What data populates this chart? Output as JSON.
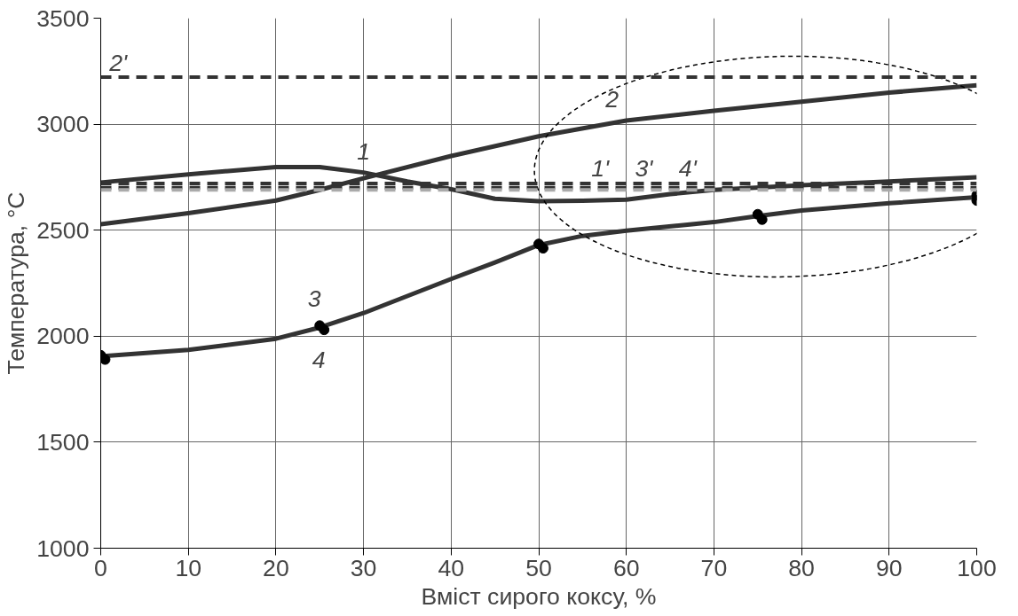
{
  "chart_data": {
    "type": "line",
    "xlabel": "Вміст сирого коксу, %",
    "ylabel": "Температура, °C",
    "xlim": [
      0,
      100
    ],
    "xticks": [
      0,
      10,
      20,
      30,
      40,
      50,
      60,
      70,
      80,
      90,
      100
    ],
    "ylim": [
      1000,
      3500
    ],
    "yticks": [
      1000,
      1500,
      2000,
      2500,
      3000,
      3500
    ],
    "grid": true,
    "line_style": "solid",
    "series": [
      {
        "name": "1",
        "color": "#333333",
        "x": [
          0,
          10,
          20,
          25,
          30,
          35,
          40,
          45,
          50,
          55,
          60,
          65,
          70,
          80,
          90,
          100
        ],
        "values": [
          2725,
          2763,
          2798,
          2798,
          2772,
          2730,
          2693,
          2648,
          2637,
          2639,
          2644,
          2670,
          2690,
          2712,
          2730,
          2750
        ]
      },
      {
        "name": "2",
        "color": "#333333",
        "x": [
          0,
          10,
          20,
          25,
          30,
          40,
          50,
          60,
          70,
          80,
          90,
          100
        ],
        "values": [
          2528,
          2580,
          2640,
          2690,
          2745,
          2850,
          2943,
          3017,
          3063,
          3106,
          3149,
          3183
        ]
      },
      {
        "color": "#333333",
        "x": [
          0,
          10,
          20,
          25,
          30,
          40,
          45,
          50,
          55,
          60,
          70,
          75,
          80,
          90,
          100
        ],
        "values": [
          1905,
          1935,
          1988,
          2041,
          2109,
          2270,
          2348,
          2430,
          2473,
          2498,
          2538,
          2567,
          2593,
          2627,
          2656
        ]
      },
      {
        "name": "3",
        "type": "scatter",
        "marker": "circle",
        "color": "#000000",
        "x": [
          0,
          25,
          50,
          75,
          100
        ],
        "values": [
          1910,
          2050,
          2435,
          2575,
          2665
        ]
      },
      {
        "name": "4",
        "type": "scatter",
        "marker": "circle",
        "color": "#000000",
        "x": [
          0.5,
          25.5,
          50.5,
          75.5,
          100
        ],
        "values": [
          1890,
          2030,
          2415,
          2550,
          2640
        ]
      }
    ],
    "ref_lines": [
      {
        "axis": "y",
        "value": 3222,
        "color": "#333333",
        "line_style": "dashed"
      },
      {
        "axis": "y",
        "value": 2720,
        "color": "#333333",
        "line_style": "dashed"
      },
      {
        "axis": "y",
        "value": 2700,
        "color": "#333333",
        "line_style": "dashed"
      },
      {
        "axis": "y",
        "value": 2690,
        "color": "#aaaaaa",
        "line_style": "dashed"
      }
    ],
    "annotations": [
      "2'",
      "1'",
      "3'",
      "4'"
    ]
  }
}
